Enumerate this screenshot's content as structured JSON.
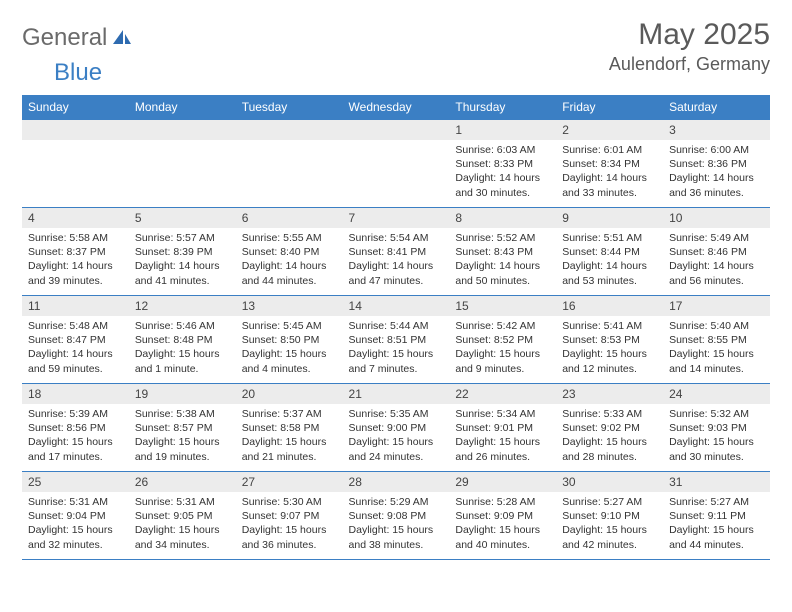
{
  "brand": {
    "part1": "General",
    "part2": "Blue"
  },
  "title": "May 2025",
  "location": "Aulendorf, Germany",
  "colors": {
    "header_bg": "#3b7fc4",
    "header_text": "#ffffff",
    "border": "#3b7fc4",
    "daynum_bg": "#ececec",
    "body_bg": "#ffffff",
    "text": "#333333",
    "title_text": "#5a5a5a",
    "logo_gray": "#6a6a6a",
    "logo_blue": "#3b7fc4"
  },
  "font": {
    "family": "Arial",
    "day_body_size_pt": 8,
    "header_size_pt": 9,
    "title_size_pt": 22
  },
  "weekdays": [
    "Sunday",
    "Monday",
    "Tuesday",
    "Wednesday",
    "Thursday",
    "Friday",
    "Saturday"
  ],
  "grid": {
    "rows": 5,
    "cols": 7,
    "first_day_col": 4
  },
  "days": [
    {
      "n": 1,
      "sunrise": "6:03 AM",
      "sunset": "8:33 PM",
      "daylight": "14 hours and 30 minutes."
    },
    {
      "n": 2,
      "sunrise": "6:01 AM",
      "sunset": "8:34 PM",
      "daylight": "14 hours and 33 minutes."
    },
    {
      "n": 3,
      "sunrise": "6:00 AM",
      "sunset": "8:36 PM",
      "daylight": "14 hours and 36 minutes."
    },
    {
      "n": 4,
      "sunrise": "5:58 AM",
      "sunset": "8:37 PM",
      "daylight": "14 hours and 39 minutes."
    },
    {
      "n": 5,
      "sunrise": "5:57 AM",
      "sunset": "8:39 PM",
      "daylight": "14 hours and 41 minutes."
    },
    {
      "n": 6,
      "sunrise": "5:55 AM",
      "sunset": "8:40 PM",
      "daylight": "14 hours and 44 minutes."
    },
    {
      "n": 7,
      "sunrise": "5:54 AM",
      "sunset": "8:41 PM",
      "daylight": "14 hours and 47 minutes."
    },
    {
      "n": 8,
      "sunrise": "5:52 AM",
      "sunset": "8:43 PM",
      "daylight": "14 hours and 50 minutes."
    },
    {
      "n": 9,
      "sunrise": "5:51 AM",
      "sunset": "8:44 PM",
      "daylight": "14 hours and 53 minutes."
    },
    {
      "n": 10,
      "sunrise": "5:49 AM",
      "sunset": "8:46 PM",
      "daylight": "14 hours and 56 minutes."
    },
    {
      "n": 11,
      "sunrise": "5:48 AM",
      "sunset": "8:47 PM",
      "daylight": "14 hours and 59 minutes."
    },
    {
      "n": 12,
      "sunrise": "5:46 AM",
      "sunset": "8:48 PM",
      "daylight": "15 hours and 1 minute."
    },
    {
      "n": 13,
      "sunrise": "5:45 AM",
      "sunset": "8:50 PM",
      "daylight": "15 hours and 4 minutes."
    },
    {
      "n": 14,
      "sunrise": "5:44 AM",
      "sunset": "8:51 PM",
      "daylight": "15 hours and 7 minutes."
    },
    {
      "n": 15,
      "sunrise": "5:42 AM",
      "sunset": "8:52 PM",
      "daylight": "15 hours and 9 minutes."
    },
    {
      "n": 16,
      "sunrise": "5:41 AM",
      "sunset": "8:53 PM",
      "daylight": "15 hours and 12 minutes."
    },
    {
      "n": 17,
      "sunrise": "5:40 AM",
      "sunset": "8:55 PM",
      "daylight": "15 hours and 14 minutes."
    },
    {
      "n": 18,
      "sunrise": "5:39 AM",
      "sunset": "8:56 PM",
      "daylight": "15 hours and 17 minutes."
    },
    {
      "n": 19,
      "sunrise": "5:38 AM",
      "sunset": "8:57 PM",
      "daylight": "15 hours and 19 minutes."
    },
    {
      "n": 20,
      "sunrise": "5:37 AM",
      "sunset": "8:58 PM",
      "daylight": "15 hours and 21 minutes."
    },
    {
      "n": 21,
      "sunrise": "5:35 AM",
      "sunset": "9:00 PM",
      "daylight": "15 hours and 24 minutes."
    },
    {
      "n": 22,
      "sunrise": "5:34 AM",
      "sunset": "9:01 PM",
      "daylight": "15 hours and 26 minutes."
    },
    {
      "n": 23,
      "sunrise": "5:33 AM",
      "sunset": "9:02 PM",
      "daylight": "15 hours and 28 minutes."
    },
    {
      "n": 24,
      "sunrise": "5:32 AM",
      "sunset": "9:03 PM",
      "daylight": "15 hours and 30 minutes."
    },
    {
      "n": 25,
      "sunrise": "5:31 AM",
      "sunset": "9:04 PM",
      "daylight": "15 hours and 32 minutes."
    },
    {
      "n": 26,
      "sunrise": "5:31 AM",
      "sunset": "9:05 PM",
      "daylight": "15 hours and 34 minutes."
    },
    {
      "n": 27,
      "sunrise": "5:30 AM",
      "sunset": "9:07 PM",
      "daylight": "15 hours and 36 minutes."
    },
    {
      "n": 28,
      "sunrise": "5:29 AM",
      "sunset": "9:08 PM",
      "daylight": "15 hours and 38 minutes."
    },
    {
      "n": 29,
      "sunrise": "5:28 AM",
      "sunset": "9:09 PM",
      "daylight": "15 hours and 40 minutes."
    },
    {
      "n": 30,
      "sunrise": "5:27 AM",
      "sunset": "9:10 PM",
      "daylight": "15 hours and 42 minutes."
    },
    {
      "n": 31,
      "sunrise": "5:27 AM",
      "sunset": "9:11 PM",
      "daylight": "15 hours and 44 minutes."
    }
  ],
  "labels": {
    "sunrise": "Sunrise:",
    "sunset": "Sunset:",
    "daylight": "Daylight:"
  }
}
